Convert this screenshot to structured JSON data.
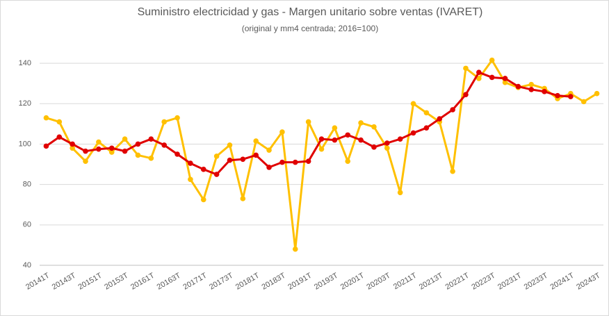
{
  "chart_data": {
    "type": "line",
    "title": "Suministro electricidad y gas - Margen unitario sobre ventas (IVARET)",
    "subtitle": "(original y mm4 centrada; 2016=100)",
    "categories": [
      "20141T",
      null,
      "20143T",
      null,
      "20151T",
      null,
      "20153T",
      null,
      "20161T",
      null,
      "20163T",
      null,
      "20171T",
      null,
      "20173T",
      null,
      "20181T",
      null,
      "20183T",
      null,
      "20191T",
      null,
      "20193T",
      null,
      "20201T",
      null,
      "20203T",
      null,
      "20211T",
      null,
      "20213T",
      null,
      "20221T",
      null,
      "20223T",
      null,
      "20231T",
      null,
      "20233T",
      null,
      "20241T",
      null,
      "20243T"
    ],
    "series": [
      {
        "color": "#ffc000",
        "values": [
          113,
          111,
          98,
          91.5,
          101,
          96,
          102.5,
          94.5,
          93,
          111,
          113,
          82.5,
          72.5,
          94,
          99.5,
          73,
          101.5,
          97,
          106,
          48,
          111,
          97.5,
          108,
          91.5,
          110.5,
          108.5,
          98,
          76,
          120,
          115.5,
          111,
          86.5,
          137.5,
          132.5,
          141.5,
          130.5,
          128,
          129.5,
          127.5,
          122.5,
          125,
          121,
          125
        ]
      },
      {
        "color": "#e00000",
        "values": [
          99,
          103.5,
          100,
          96.5,
          97.5,
          98,
          96.5,
          100,
          102.5,
          99.5,
          95,
          90.5,
          87.5,
          85,
          92,
          92.5,
          94.5,
          88.5,
          91,
          91,
          91.5,
          102.5,
          102,
          104.5,
          102,
          98.5,
          100.5,
          102.5,
          105.5,
          108,
          112.5,
          117,
          124.5,
          135.5,
          133,
          132.5,
          128.5,
          127,
          126,
          124,
          123.5,
          null,
          null
        ]
      }
    ],
    "ylim": [
      40,
      150
    ],
    "yticks": [
      40,
      60,
      80,
      100,
      120,
      140
    ],
    "grid": true
  }
}
